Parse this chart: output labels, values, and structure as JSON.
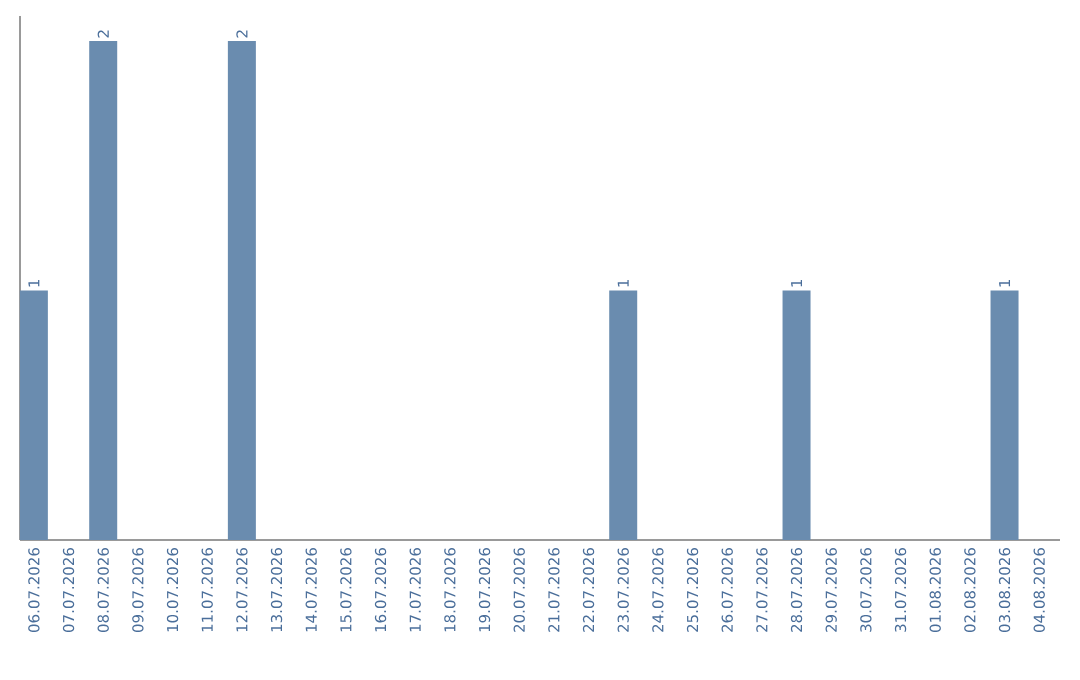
{
  "chart_data": {
    "type": "bar",
    "color": "#6a8caf",
    "categories": [
      "06.07.2026",
      "07.07.2026",
      "08.07.2026",
      "09.07.2026",
      "10.07.2026",
      "11.07.2026",
      "12.07.2026",
      "13.07.2026",
      "14.07.2026",
      "15.07.2026",
      "16.07.2026",
      "17.07.2026",
      "18.07.2026",
      "19.07.2026",
      "20.07.2026",
      "21.07.2026",
      "22.07.2026",
      "23.07.2026",
      "24.07.2026",
      "25.07.2026",
      "26.07.2026",
      "27.07.2026",
      "28.07.2026",
      "29.07.2026",
      "30.07.2026",
      "31.07.2026",
      "01.08.2026",
      "02.08.2026",
      "03.08.2026",
      "04.08.2026"
    ],
    "values": [
      1,
      0,
      2,
      0,
      0,
      0,
      2,
      0,
      0,
      0,
      0,
      0,
      0,
      0,
      0,
      0,
      0,
      1,
      0,
      0,
      0,
      0,
      1,
      0,
      0,
      0,
      0,
      0,
      1,
      0
    ],
    "value_labels": [
      "1",
      null,
      "2",
      null,
      null,
      null,
      "2",
      null,
      null,
      null,
      null,
      null,
      null,
      null,
      null,
      null,
      null,
      "1",
      null,
      null,
      null,
      null,
      "1",
      null,
      null,
      null,
      null,
      null,
      "1",
      null
    ]
  }
}
